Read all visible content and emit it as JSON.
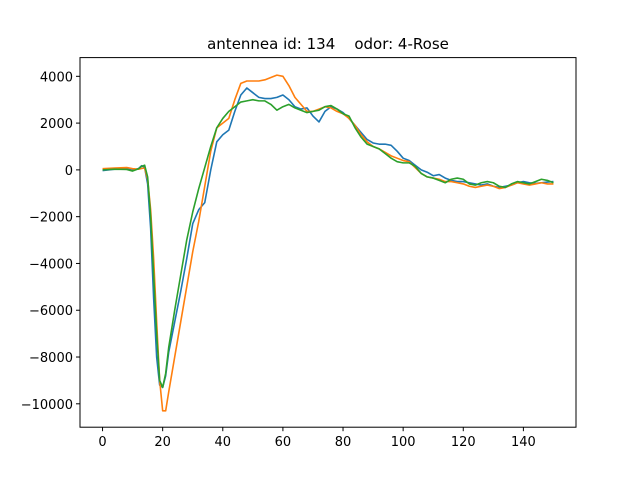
{
  "chart_data": {
    "type": "line",
    "title": "antennea id: 134    odor: 4-Rose",
    "xlabel": "",
    "ylabel": "",
    "xlim": [
      -7.5,
      157.5
    ],
    "ylim": [
      -11000,
      4800
    ],
    "xticks": [
      0,
      20,
      40,
      60,
      80,
      100,
      120,
      140
    ],
    "yticks": [
      -10000,
      -8000,
      -6000,
      -4000,
      -2000,
      0,
      2000,
      4000
    ],
    "grid": false,
    "legend": "none",
    "series": [
      {
        "color": "#1f77b4",
        "points": [
          [
            0,
            -30
          ],
          [
            4,
            30
          ],
          [
            8,
            60
          ],
          [
            10,
            -20
          ],
          [
            12,
            60
          ],
          [
            13,
            180
          ],
          [
            14,
            100
          ],
          [
            15,
            -600
          ],
          [
            16,
            -2500
          ],
          [
            17,
            -5500
          ],
          [
            18,
            -8000
          ],
          [
            19,
            -9200
          ],
          [
            20,
            -9300
          ],
          [
            21,
            -8800
          ],
          [
            22,
            -7800
          ],
          [
            24,
            -6500
          ],
          [
            26,
            -5200
          ],
          [
            28,
            -3800
          ],
          [
            30,
            -2300
          ],
          [
            32,
            -1700
          ],
          [
            34,
            -1400
          ],
          [
            36,
            0
          ],
          [
            38,
            1200
          ],
          [
            40,
            1500
          ],
          [
            42,
            1700
          ],
          [
            44,
            2500
          ],
          [
            46,
            3200
          ],
          [
            48,
            3500
          ],
          [
            50,
            3300
          ],
          [
            52,
            3100
          ],
          [
            54,
            3050
          ],
          [
            56,
            3050
          ],
          [
            58,
            3100
          ],
          [
            60,
            3200
          ],
          [
            62,
            3000
          ],
          [
            64,
            2700
          ],
          [
            66,
            2600
          ],
          [
            68,
            2650
          ],
          [
            70,
            2300
          ],
          [
            72,
            2050
          ],
          [
            74,
            2500
          ],
          [
            76,
            2700
          ],
          [
            78,
            2600
          ],
          [
            80,
            2450
          ],
          [
            82,
            2200
          ],
          [
            84,
            1900
          ],
          [
            86,
            1600
          ],
          [
            88,
            1300
          ],
          [
            90,
            1150
          ],
          [
            92,
            1100
          ],
          [
            94,
            1100
          ],
          [
            96,
            1050
          ],
          [
            98,
            800
          ],
          [
            100,
            500
          ],
          [
            102,
            400
          ],
          [
            104,
            200
          ],
          [
            106,
            0
          ],
          [
            108,
            -100
          ],
          [
            110,
            -250
          ],
          [
            112,
            -200
          ],
          [
            114,
            -350
          ],
          [
            116,
            -450
          ],
          [
            118,
            -500
          ],
          [
            120,
            -500
          ],
          [
            122,
            -550
          ],
          [
            124,
            -600
          ],
          [
            126,
            -650
          ],
          [
            128,
            -600
          ],
          [
            130,
            -700
          ],
          [
            132,
            -750
          ],
          [
            134,
            -700
          ],
          [
            136,
            -650
          ],
          [
            138,
            -550
          ],
          [
            140,
            -500
          ],
          [
            142,
            -550
          ],
          [
            144,
            -580
          ],
          [
            146,
            -550
          ],
          [
            148,
            -520
          ],
          [
            150,
            -500
          ]
        ]
      },
      {
        "color": "#ff7f0e",
        "points": [
          [
            0,
            50
          ],
          [
            4,
            80
          ],
          [
            8,
            100
          ],
          [
            10,
            50
          ],
          [
            12,
            30
          ],
          [
            13,
            60
          ],
          [
            14,
            80
          ],
          [
            15,
            -400
          ],
          [
            16,
            -1700
          ],
          [
            17,
            -3800
          ],
          [
            18,
            -6500
          ],
          [
            19,
            -9000
          ],
          [
            20,
            -10300
          ],
          [
            21,
            -10300
          ],
          [
            22,
            -9500
          ],
          [
            24,
            -8000
          ],
          [
            26,
            -6500
          ],
          [
            28,
            -5000
          ],
          [
            30,
            -3500
          ],
          [
            32,
            -2200
          ],
          [
            34,
            -700
          ],
          [
            36,
            800
          ],
          [
            38,
            1800
          ],
          [
            40,
            2000
          ],
          [
            42,
            2200
          ],
          [
            44,
            3000
          ],
          [
            46,
            3700
          ],
          [
            48,
            3800
          ],
          [
            50,
            3800
          ],
          [
            52,
            3800
          ],
          [
            54,
            3850
          ],
          [
            56,
            3950
          ],
          [
            58,
            4050
          ],
          [
            60,
            4000
          ],
          [
            62,
            3600
          ],
          [
            64,
            3100
          ],
          [
            66,
            2800
          ],
          [
            68,
            2500
          ],
          [
            70,
            2500
          ],
          [
            72,
            2600
          ],
          [
            74,
            2700
          ],
          [
            76,
            2650
          ],
          [
            78,
            2500
          ],
          [
            80,
            2400
          ],
          [
            82,
            2200
          ],
          [
            84,
            1900
          ],
          [
            86,
            1500
          ],
          [
            88,
            1200
          ],
          [
            90,
            1000
          ],
          [
            92,
            900
          ],
          [
            94,
            750
          ],
          [
            96,
            600
          ],
          [
            98,
            500
          ],
          [
            100,
            400
          ],
          [
            102,
            350
          ],
          [
            104,
            100
          ],
          [
            106,
            -150
          ],
          [
            108,
            -300
          ],
          [
            110,
            -350
          ],
          [
            112,
            -400
          ],
          [
            114,
            -500
          ],
          [
            116,
            -500
          ],
          [
            118,
            -550
          ],
          [
            120,
            -600
          ],
          [
            122,
            -700
          ],
          [
            124,
            -750
          ],
          [
            126,
            -700
          ],
          [
            128,
            -650
          ],
          [
            130,
            -700
          ],
          [
            132,
            -800
          ],
          [
            134,
            -750
          ],
          [
            136,
            -650
          ],
          [
            138,
            -550
          ],
          [
            140,
            -600
          ],
          [
            142,
            -650
          ],
          [
            144,
            -600
          ],
          [
            146,
            -550
          ],
          [
            148,
            -600
          ],
          [
            150,
            -600
          ]
        ]
      },
      {
        "color": "#2ca02c",
        "points": [
          [
            0,
            0
          ],
          [
            4,
            30
          ],
          [
            8,
            20
          ],
          [
            10,
            -50
          ],
          [
            12,
            50
          ],
          [
            13,
            150
          ],
          [
            14,
            200
          ],
          [
            15,
            -300
          ],
          [
            16,
            -2000
          ],
          [
            17,
            -4500
          ],
          [
            18,
            -7000
          ],
          [
            19,
            -9000
          ],
          [
            20,
            -9300
          ],
          [
            21,
            -8700
          ],
          [
            22,
            -7600
          ],
          [
            24,
            -6000
          ],
          [
            26,
            -4500
          ],
          [
            28,
            -3000
          ],
          [
            30,
            -1800
          ],
          [
            32,
            -800
          ],
          [
            34,
            100
          ],
          [
            36,
            1000
          ],
          [
            38,
            1800
          ],
          [
            40,
            2200
          ],
          [
            42,
            2500
          ],
          [
            44,
            2700
          ],
          [
            46,
            2900
          ],
          [
            48,
            2950
          ],
          [
            50,
            3000
          ],
          [
            52,
            2950
          ],
          [
            54,
            2950
          ],
          [
            56,
            2800
          ],
          [
            58,
            2550
          ],
          [
            60,
            2700
          ],
          [
            62,
            2800
          ],
          [
            64,
            2650
          ],
          [
            66,
            2550
          ],
          [
            68,
            2450
          ],
          [
            70,
            2500
          ],
          [
            72,
            2550
          ],
          [
            74,
            2700
          ],
          [
            76,
            2750
          ],
          [
            78,
            2600
          ],
          [
            80,
            2400
          ],
          [
            82,
            2300
          ],
          [
            84,
            1800
          ],
          [
            86,
            1400
          ],
          [
            88,
            1100
          ],
          [
            90,
            1000
          ],
          [
            92,
            900
          ],
          [
            94,
            700
          ],
          [
            96,
            500
          ],
          [
            98,
            350
          ],
          [
            100,
            300
          ],
          [
            102,
            300
          ],
          [
            104,
            150
          ],
          [
            106,
            -150
          ],
          [
            108,
            -300
          ],
          [
            110,
            -350
          ],
          [
            112,
            -450
          ],
          [
            114,
            -550
          ],
          [
            116,
            -400
          ],
          [
            118,
            -350
          ],
          [
            120,
            -400
          ],
          [
            122,
            -600
          ],
          [
            124,
            -650
          ],
          [
            126,
            -550
          ],
          [
            128,
            -500
          ],
          [
            130,
            -550
          ],
          [
            132,
            -700
          ],
          [
            134,
            -750
          ],
          [
            136,
            -600
          ],
          [
            138,
            -500
          ],
          [
            140,
            -550
          ],
          [
            142,
            -600
          ],
          [
            144,
            -500
          ],
          [
            146,
            -400
          ],
          [
            148,
            -450
          ],
          [
            150,
            -550
          ]
        ]
      }
    ]
  }
}
